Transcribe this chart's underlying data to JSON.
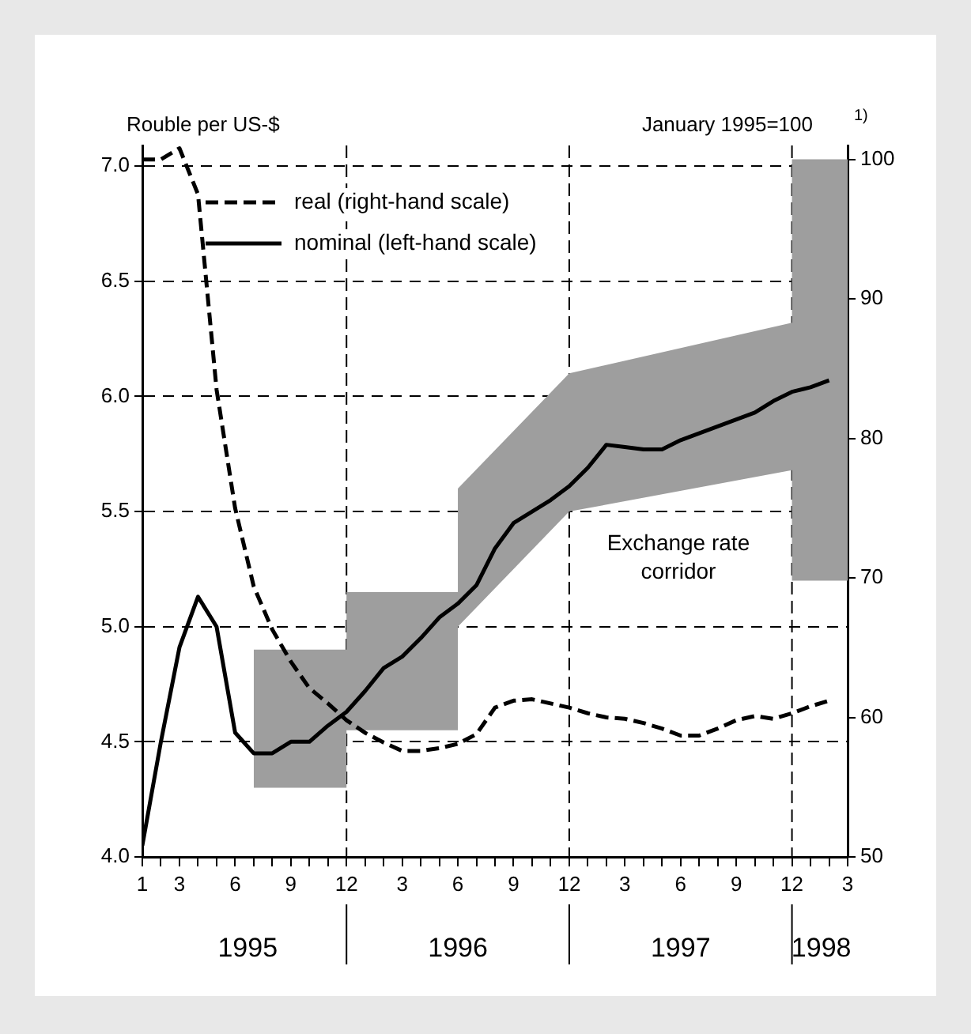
{
  "chart_data": {
    "type": "line",
    "ylabel": "Rouble per US-$",
    "y2label": "January 1995=100",
    "annotations": [
      "1)",
      "Exchange rate corridor"
    ],
    "x": [
      "1995-01",
      "1995-02",
      "1995-03",
      "1995-04",
      "1995-05",
      "1995-06",
      "1995-07",
      "1995-08",
      "1995-09",
      "1995-10",
      "1995-11",
      "1995-12",
      "1996-01",
      "1996-02",
      "1996-03",
      "1996-04",
      "1996-05",
      "1996-06",
      "1996-07",
      "1996-08",
      "1996-09",
      "1996-10",
      "1996-11",
      "1996-12",
      "1997-01",
      "1997-02",
      "1997-03",
      "1997-04",
      "1997-05",
      "1997-06",
      "1997-07",
      "1997-08",
      "1997-09",
      "1997-10",
      "1997-11",
      "1997-12",
      "1998-01",
      "1998-02"
    ],
    "series": [
      {
        "name": "real (right-hand scale)",
        "axis": "y2",
        "color": "#000000",
        "line_style": "dashed",
        "values": [
          100,
          100,
          100.8,
          97.5,
          83.5,
          75,
          69.4,
          66.3,
          64,
          62.1,
          61,
          59.8,
          58.9,
          58.2,
          57.6,
          57.6,
          57.8,
          58.1,
          58.8,
          60.7,
          61.2,
          61.3,
          61,
          60.7,
          60.3,
          60,
          59.9,
          59.6,
          59.2,
          58.7,
          58.7,
          59.2,
          59.8,
          60.1,
          59.9,
          60.3,
          60.8,
          61.2
        ]
      },
      {
        "name": "nominal (left-hand scale)",
        "color": "#000000",
        "line_style": "solid",
        "values": [
          4.05,
          4.5,
          4.91,
          5.13,
          5,
          4.54,
          4.45,
          4.45,
          4.5,
          4.5,
          4.57,
          4.63,
          4.72,
          4.82,
          4.87,
          4.95,
          5.04,
          5.1,
          5.18,
          5.34,
          5.45,
          5.5,
          5.55,
          5.61,
          5.69,
          5.79,
          5.78,
          5.77,
          5.77,
          5.81,
          5.84,
          5.87,
          5.9,
          5.93,
          5.98,
          6.02,
          6.04,
          6.07
        ]
      },
      {
        "type": "area",
        "color": "#9e9e9e",
        "x": [
          "1995-07",
          "1995-12",
          "1995-12",
          "1996-06",
          "1996-06",
          "1996-12",
          "1996-12",
          "1997-12",
          "1997-12",
          "1998-03"
        ],
        "values": [
          null,
          null,
          null,
          null,
          null,
          null,
          null,
          null,
          null,
          null
        ],
        "lower": [
          4.3,
          4.3,
          4.55,
          4.55,
          5,
          5.5,
          5.5,
          5.68,
          5.2,
          5.2
        ],
        "upper": [
          4.9,
          4.9,
          5.15,
          5.15,
          5.6,
          6.1,
          6.1,
          6.32,
          7.03,
          7.03
        ]
      }
    ],
    "xlim": [
      "1995-01",
      "1998-03"
    ],
    "xticks": [
      {
        "value": "1995-01",
        "label": "1"
      },
      {
        "value": "1995-02",
        "label": null
      },
      {
        "value": "1995-03",
        "label": "3"
      },
      {
        "value": "1995-04",
        "label": null
      },
      {
        "value": "1995-05",
        "label": null
      },
      {
        "value": "1995-06",
        "label": "6"
      },
      {
        "value": "1995-07",
        "label": null
      },
      {
        "value": "1995-08",
        "label": null
      },
      {
        "value": "1995-09",
        "label": "9"
      },
      {
        "value": "1995-10",
        "label": null
      },
      {
        "value": "1995-11",
        "label": null
      },
      {
        "value": "1995-12",
        "label": "12"
      },
      {
        "value": "1996-01",
        "label": null
      },
      {
        "value": "1996-02",
        "label": null
      },
      {
        "value": "1996-03",
        "label": "3"
      },
      {
        "value": "1996-04",
        "label": null
      },
      {
        "value": "1996-05",
        "label": null
      },
      {
        "value": "1996-06",
        "label": "6"
      },
      {
        "value": "1996-07",
        "label": null
      },
      {
        "value": "1996-08",
        "label": null
      },
      {
        "value": "1996-09",
        "label": "9"
      },
      {
        "value": "1996-10",
        "label": null
      },
      {
        "value": "1996-11",
        "label": null
      },
      {
        "value": "1996-12",
        "label": "12"
      },
      {
        "value": "1997-01",
        "label": null
      },
      {
        "value": "1997-02",
        "label": null
      },
      {
        "value": "1997-03",
        "label": "3"
      },
      {
        "value": "1997-04",
        "label": null
      },
      {
        "value": "1997-05",
        "label": null
      },
      {
        "value": "1997-06",
        "label": "6"
      },
      {
        "value": "1997-07",
        "label": null
      },
      {
        "value": "1997-08",
        "label": null
      },
      {
        "value": "1997-09",
        "label": "9"
      },
      {
        "value": "1997-10",
        "label": null
      },
      {
        "value": "1997-11",
        "label": null
      },
      {
        "value": "1997-12",
        "label": "12"
      },
      {
        "value": "1998-01",
        "label": null
      },
      {
        "value": "1998-02",
        "label": null
      },
      {
        "value": "1998-03",
        "label": "3"
      }
    ],
    "x2lim": [
      "1995-01",
      "1998-03"
    ],
    "x2ticks": [
      {
        "value": "1995-06-22",
        "label": "1995"
      },
      {
        "value": "1995-12",
        "label": null
      },
      {
        "value": "1996-06",
        "label": "1996"
      },
      {
        "value": "1996-12",
        "label": null
      },
      {
        "value": "1997-06",
        "label": "1997"
      },
      {
        "value": "1997-12",
        "label": null
      },
      {
        "value": "1998-01-19",
        "label": "1998"
      }
    ],
    "ylim": [
      4,
      7.09
    ],
    "yticks": [
      {
        "value": 4,
        "label": "4.0"
      },
      4.5,
      {
        "value": 5,
        "label": "5.0"
      },
      5.5,
      {
        "value": 6,
        "label": "6.0"
      },
      6.5,
      {
        "value": 7,
        "label": "7.0"
      }
    ],
    "y2lim": [
      50,
      101
    ],
    "y2ticks": [
      50,
      60,
      70,
      80,
      90,
      100
    ],
    "ref_lines": [
      {
        "axis": "x",
        "value": "1995-12",
        "line_style": "dashed"
      },
      {
        "axis": "x",
        "value": "1996-12",
        "line_style": "dashed"
      },
      {
        "axis": "x",
        "value": "1997-12",
        "line_style": "dashed"
      }
    ],
    "grid": "y",
    "legend": "top left"
  }
}
